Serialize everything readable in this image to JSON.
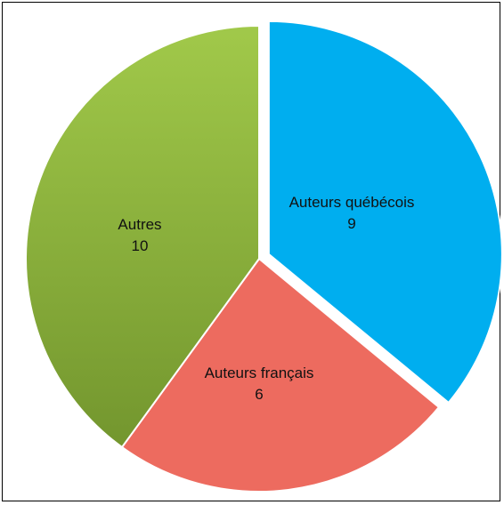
{
  "chart_data": {
    "type": "pie",
    "slices": [
      {
        "label": "Auteurs québécois",
        "value": 9,
        "value_label": "9",
        "color": "#00aeef",
        "exploded": true
      },
      {
        "label": "Auteurs français",
        "value": 6,
        "value_label": "6",
        "color": "#ed6b5f",
        "exploded": false
      },
      {
        "label": "Autres",
        "value": 10,
        "value_label": "10",
        "color": "#8ab53d",
        "exploded": false
      }
    ],
    "legend": "none"
  }
}
